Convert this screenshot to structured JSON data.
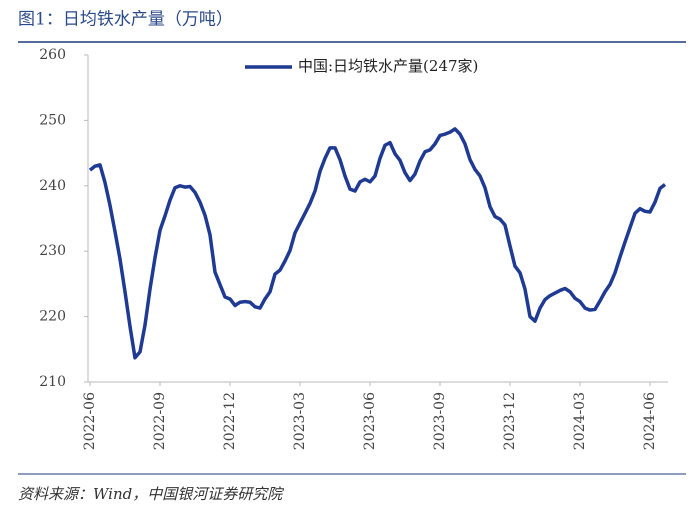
{
  "chart_data": {
    "type": "line",
    "title": "图1：日均铁水产量（万吨）",
    "source": "资料来源：Wind，中国银河证券研究院",
    "categories": [
      "2022-06",
      null,
      null,
      null,
      null,
      null,
      null,
      null,
      null,
      null,
      null,
      null,
      null,
      null,
      "2022-09",
      null,
      null,
      null,
      null,
      null,
      null,
      null,
      null,
      null,
      null,
      null,
      null,
      null,
      "2022-12",
      null,
      null,
      null,
      null,
      null,
      null,
      null,
      null,
      null,
      null,
      null,
      null,
      null,
      "2023-03",
      null,
      null,
      null,
      null,
      null,
      null,
      null,
      null,
      null,
      null,
      null,
      null,
      null,
      "2023-06",
      null,
      null,
      null,
      null,
      null,
      null,
      null,
      null,
      null,
      null,
      null,
      null,
      null,
      "2023-09",
      null,
      null,
      null,
      null,
      null,
      null,
      null,
      null,
      null,
      null,
      null,
      null,
      null,
      "2023-12",
      null,
      null,
      null,
      null,
      null,
      null,
      null,
      null,
      null,
      null,
      null,
      null,
      null,
      "2024-03",
      null,
      null,
      null,
      null,
      null,
      null,
      null,
      null,
      null,
      null,
      null,
      null,
      null,
      "2024-06",
      null,
      null,
      null
    ],
    "series": [
      {
        "name": "中国:日均铁水产量(247家)",
        "color": "#1f3a93",
        "values": [
          242.4,
          243,
          243.2,
          240.5,
          237,
          233,
          228.8,
          223.8,
          218.5,
          213.7,
          214.6,
          218.7,
          224.2,
          229,
          233.2,
          235.4,
          237.8,
          239.7,
          240,
          239.8,
          239.9,
          239,
          237.5,
          235.5,
          232.5,
          226.8,
          224.9,
          223,
          222.7,
          221.7,
          222.2,
          222.3,
          222.2,
          221.5,
          221.3,
          222.7,
          223.8,
          226.5,
          227.1,
          228.5,
          230.1,
          232.8,
          234.3,
          235.8,
          237.3,
          239.2,
          242.2,
          244.2,
          245.8,
          245.8,
          244,
          241.5,
          239.5,
          239.2,
          240.6,
          241,
          240.6,
          241.5,
          244.2,
          246.2,
          246.6,
          244.9,
          243.9,
          242,
          240.8,
          241.8,
          243.8,
          245.2,
          245.5,
          246.4,
          247.7,
          247.9,
          248.2,
          248.7,
          247.9,
          246.4,
          244,
          242.5,
          241.5,
          239.7,
          236.8,
          235.3,
          234.9,
          234,
          230.8,
          227.7,
          226.7,
          224.2,
          220,
          219.3,
          221.3,
          222.6,
          223.2,
          223.6,
          224,
          224.3,
          223.8,
          222.8,
          222.3,
          221.3,
          221,
          221.1,
          222.4,
          223.8,
          224.9,
          226.7,
          229.1,
          231.4,
          233.6,
          235.8,
          236.5,
          236.1,
          236,
          237.5,
          239.6,
          240.2
        ]
      }
    ],
    "ylim": [
      210,
      260
    ],
    "yticks": [
      210,
      220,
      230,
      240,
      250,
      260
    ],
    "legend": "top"
  }
}
